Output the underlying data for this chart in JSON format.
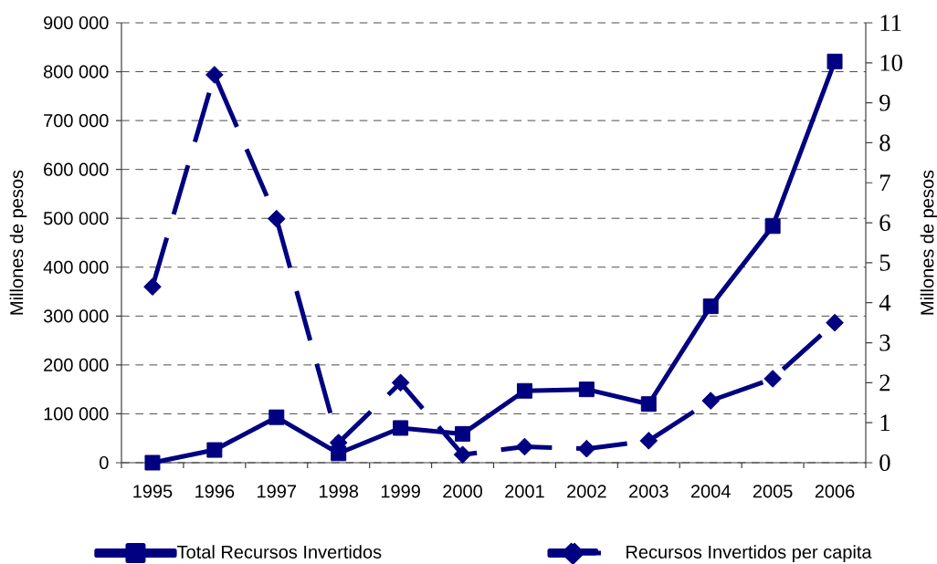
{
  "chart_data": {
    "type": "line",
    "ylabel": "Millones de pesos",
    "y2label": "Millones de pesos",
    "categories": [
      "1995",
      "1996",
      "1997",
      "1998",
      "1999",
      "2000",
      "2001",
      "2002",
      "2003",
      "2004",
      "2005",
      "2006"
    ],
    "series": [
      {
        "name": "Total Recursos Invertidos",
        "color": "#000080",
        "marker": "square",
        "line_style": "solid",
        "values": [
          0,
          26000,
          93000,
          19000,
          71000,
          59000,
          147000,
          150000,
          120000,
          320000,
          484000,
          821000
        ]
      },
      {
        "name": "Recursos Invertidos per capita",
        "color": "#000080",
        "marker": "diamond",
        "line_style": "dashed",
        "axis": "y2",
        "values": [
          4.4,
          9.7,
          6.1,
          0.5,
          2.0,
          0.2,
          0.4,
          0.35,
          0.55,
          1.55,
          2.1,
          3.5
        ]
      }
    ],
    "ylim": [
      0,
      900000
    ],
    "yticks": [
      0,
      {
        "value": 100000,
        "label": "100 000"
      },
      {
        "value": 200000,
        "label": "200 000"
      },
      {
        "value": 300000,
        "label": "300 000"
      },
      {
        "value": 400000,
        "label": "400 000"
      },
      {
        "value": 500000,
        "label": "500 000"
      },
      {
        "value": 600000,
        "label": "600 000"
      },
      {
        "value": 700000,
        "label": "700 000"
      },
      {
        "value": 800000,
        "label": "800 000"
      },
      {
        "value": 900000,
        "label": "900 000"
      }
    ],
    "y2lim": [
      0,
      11
    ],
    "y2ticks": [
      0,
      1,
      2,
      3,
      4,
      5,
      6,
      7,
      8,
      9,
      10,
      11
    ],
    "grid": "y",
    "legend": "bottom"
  }
}
